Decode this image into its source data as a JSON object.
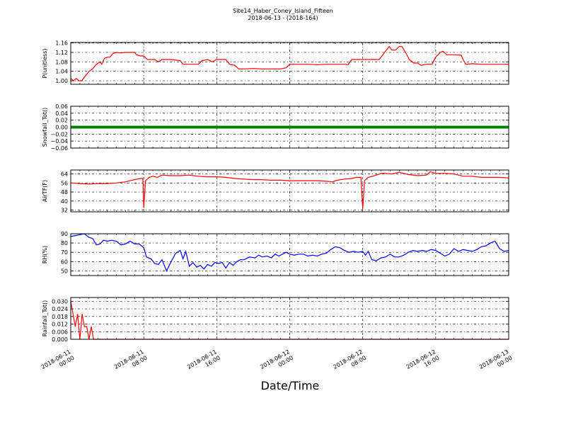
{
  "title_line1": "Site14_Haber_Coney_Island_Fifteen",
  "title_line2": "2018-06-13 - (2018-164)",
  "xlabel": "Date/Time",
  "chart_data": {
    "type": "line",
    "x_ticks": [
      {
        "line1": "2018-06-11",
        "line2": "00:00",
        "hours": 0
      },
      {
        "line1": "2018-06-11",
        "line2": "08:00",
        "hours": 8
      },
      {
        "line1": "2018-06-11",
        "line2": "16:00",
        "hours": 16
      },
      {
        "line1": "2018-06-12",
        "line2": "00:00",
        "hours": 24
      },
      {
        "line1": "2018-06-12",
        "line2": "08:00",
        "hours": 32
      },
      {
        "line1": "2018-06-12",
        "line2": "16:00",
        "hours": 40
      },
      {
        "line1": "2018-06-13",
        "line2": "00:00",
        "hours": 48
      }
    ],
    "panels": [
      {
        "ylabel": "P(unitless)",
        "ylim": [
          0.985,
          1.162
        ],
        "yticks": [
          "1.00",
          "1.04",
          "1.08",
          "1.12",
          "1.16"
        ],
        "ytick_values": [
          1.0,
          1.04,
          1.08,
          1.12,
          1.16
        ],
        "color": "#ff0000",
        "series_points": [
          [
            0,
            1.01
          ],
          [
            0.3,
            1.0
          ],
          [
            0.6,
            1.01
          ],
          [
            0.9,
            1.0
          ],
          [
            1.2,
            1.0
          ],
          [
            1.6,
            1.02
          ],
          [
            2.0,
            1.04
          ],
          [
            2.4,
            1.05
          ],
          [
            2.7,
            1.065
          ],
          [
            3.0,
            1.075
          ],
          [
            3.2,
            1.08
          ],
          [
            3.4,
            1.07
          ],
          [
            3.7,
            1.095
          ],
          [
            4.0,
            1.1
          ],
          [
            4.3,
            1.1
          ],
          [
            4.6,
            1.115
          ],
          [
            5.0,
            1.12
          ],
          [
            5.5,
            1.118
          ],
          [
            6,
            1.12
          ],
          [
            6.6,
            1.12
          ],
          [
            7.0,
            1.12
          ],
          [
            7.2,
            1.11
          ],
          [
            7.6,
            1.105
          ],
          [
            8.0,
            1.105
          ],
          [
            8.4,
            1.09
          ],
          [
            8.8,
            1.09
          ],
          [
            9.2,
            1.09
          ],
          [
            9.6,
            1.08
          ],
          [
            10.0,
            1.09
          ],
          [
            11,
            1.09
          ],
          [
            12,
            1.085
          ],
          [
            12.3,
            1.07
          ],
          [
            12.7,
            1.07
          ],
          [
            13.5,
            1.07
          ],
          [
            14,
            1.07
          ],
          [
            14.4,
            1.085
          ],
          [
            15,
            1.09
          ],
          [
            15.5,
            1.08
          ],
          [
            16,
            1.09
          ],
          [
            16.5,
            1.09
          ],
          [
            17,
            1.09
          ],
          [
            17.4,
            1.07
          ],
          [
            18,
            1.065
          ],
          [
            18.4,
            1.05
          ],
          [
            19,
            1.05
          ],
          [
            20,
            1.052
          ],
          [
            21,
            1.05
          ],
          [
            22,
            1.05
          ],
          [
            23,
            1.05
          ],
          [
            23.6,
            1.055
          ],
          [
            24,
            1.07
          ],
          [
            25,
            1.07
          ],
          [
            26,
            1.07
          ],
          [
            27,
            1.068
          ],
          [
            28,
            1.07
          ],
          [
            29,
            1.07
          ],
          [
            30,
            1.07
          ],
          [
            30.4,
            1.068
          ],
          [
            30.8,
            1.09
          ],
          [
            31.5,
            1.09
          ],
          [
            32,
            1.09
          ],
          [
            33,
            1.09
          ],
          [
            33.8,
            1.09
          ],
          [
            34,
            1.1
          ],
          [
            34.5,
            1.125
          ],
          [
            34.9,
            1.145
          ],
          [
            35.2,
            1.13
          ],
          [
            35.6,
            1.13
          ],
          [
            36,
            1.145
          ],
          [
            36.3,
            1.145
          ],
          [
            36.7,
            1.12
          ],
          [
            37.1,
            1.09
          ],
          [
            37.6,
            1.075
          ],
          [
            38,
            1.075
          ],
          [
            38.4,
            1.065
          ],
          [
            39,
            1.07
          ],
          [
            39.6,
            1.07
          ],
          [
            40,
            1.1
          ],
          [
            40.5,
            1.12
          ],
          [
            40.8,
            1.125
          ],
          [
            41.2,
            1.11
          ],
          [
            42,
            1.11
          ],
          [
            42.8,
            1.108
          ],
          [
            43,
            1.09
          ],
          [
            43.3,
            1.07
          ],
          [
            44,
            1.072
          ],
          [
            45,
            1.07
          ],
          [
            46,
            1.07
          ],
          [
            47,
            1.07
          ],
          [
            48,
            1.07
          ]
        ]
      },
      {
        "ylabel": "Snowfall_Tot()",
        "ylim": [
          -0.06,
          0.06
        ],
        "yticks": [
          "−0.06",
          "−0.04",
          "−0.02",
          "0.00",
          "0.02",
          "0.04",
          "0.06"
        ],
        "ytick_values": [
          -0.06,
          -0.04,
          -0.02,
          0.0,
          0.02,
          0.04,
          0.06
        ],
        "color": "#008000",
        "constant_value": 0.0
      },
      {
        "ylabel": "AirTF(F)",
        "ylim": [
          30.5,
          67.5
        ],
        "yticks": [
          "32",
          "40",
          "48",
          "56",
          "64"
        ],
        "ytick_values": [
          32,
          40,
          48,
          56,
          64
        ],
        "color": "#ff0000",
        "series_points": [
          [
            0,
            56
          ],
          [
            1,
            55.5
          ],
          [
            2,
            55
          ],
          [
            3,
            55.5
          ],
          [
            4,
            55.5
          ],
          [
            5,
            56
          ],
          [
            6,
            57
          ],
          [
            7,
            59
          ],
          [
            7.6,
            60
          ],
          [
            7.9,
            60
          ],
          [
            8.0,
            34
          ],
          [
            8.2,
            58
          ],
          [
            8.6,
            61
          ],
          [
            9,
            62
          ],
          [
            9.5,
            61
          ],
          [
            10,
            63
          ],
          [
            11,
            62.5
          ],
          [
            12,
            62.5
          ],
          [
            13,
            63
          ],
          [
            14,
            62
          ],
          [
            15,
            61.5
          ],
          [
            16,
            61.5
          ],
          [
            17,
            61
          ],
          [
            18,
            60
          ],
          [
            19,
            59.5
          ],
          [
            20,
            59
          ],
          [
            21,
            59
          ],
          [
            22,
            58.5
          ],
          [
            23,
            58.5
          ],
          [
            24,
            58
          ],
          [
            25,
            58
          ],
          [
            26,
            58
          ],
          [
            27,
            58
          ],
          [
            28,
            57.5
          ],
          [
            28.7,
            57
          ],
          [
            29.2,
            58.5
          ],
          [
            30,
            59.5
          ],
          [
            30.8,
            60
          ],
          [
            31.3,
            61
          ],
          [
            31.8,
            61
          ],
          [
            32.0,
            33
          ],
          [
            32.2,
            58
          ],
          [
            32.6,
            61
          ],
          [
            33.5,
            63
          ],
          [
            34,
            64.5
          ],
          [
            34.5,
            64.5
          ],
          [
            35.2,
            64
          ],
          [
            36,
            65.5
          ],
          [
            37,
            63.5
          ],
          [
            38,
            62.5
          ],
          [
            39,
            63
          ],
          [
            39.4,
            66
          ],
          [
            40,
            64.5
          ],
          [
            41,
            64.5
          ],
          [
            42,
            64
          ],
          [
            43,
            62
          ],
          [
            44,
            62
          ],
          [
            45,
            61
          ],
          [
            46,
            61
          ],
          [
            47,
            61
          ],
          [
            48,
            60.5
          ]
        ]
      },
      {
        "ylabel": "RH(%)",
        "ylim": [
          45,
          90
        ],
        "yticks": [
          "50",
          "60",
          "70",
          "80",
          "90"
        ],
        "ytick_values": [
          50,
          60,
          70,
          80,
          90
        ],
        "color": "#0000ff",
        "series_points": [
          [
            0,
            87
          ],
          [
            0.5,
            88
          ],
          [
            1,
            89
          ],
          [
            1.5,
            90
          ],
          [
            2,
            86
          ],
          [
            2.4,
            85
          ],
          [
            2.8,
            78
          ],
          [
            3.2,
            79
          ],
          [
            3.6,
            83
          ],
          [
            4,
            82
          ],
          [
            4.5,
            83
          ],
          [
            5,
            82
          ],
          [
            5.5,
            78
          ],
          [
            6,
            79
          ],
          [
            6.5,
            82
          ],
          [
            7,
            79
          ],
          [
            7.5,
            79
          ],
          [
            8,
            75
          ],
          [
            8.3,
            65
          ],
          [
            8.8,
            63
          ],
          [
            9.2,
            58
          ],
          [
            9.6,
            57
          ],
          [
            10,
            62
          ],
          [
            10.5,
            50
          ],
          [
            11,
            60
          ],
          [
            11.5,
            69
          ],
          [
            12,
            72
          ],
          [
            12.3,
            63
          ],
          [
            12.6,
            71
          ],
          [
            13,
            55
          ],
          [
            13.4,
            59
          ],
          [
            13.8,
            54
          ],
          [
            14.2,
            56
          ],
          [
            14.6,
            52
          ],
          [
            15,
            57
          ],
          [
            15.4,
            55
          ],
          [
            15.8,
            59
          ],
          [
            16.2,
            58
          ],
          [
            16.6,
            59
          ],
          [
            17,
            53
          ],
          [
            17.4,
            59
          ],
          [
            17.8,
            56
          ],
          [
            18.2,
            60
          ],
          [
            18.6,
            62
          ],
          [
            19,
            62
          ],
          [
            19.6,
            65
          ],
          [
            20.2,
            64
          ],
          [
            20.6,
            67
          ],
          [
            21,
            65
          ],
          [
            21.5,
            66
          ],
          [
            22,
            64
          ],
          [
            22.4,
            68
          ],
          [
            22.8,
            66
          ],
          [
            23.2,
            68
          ],
          [
            23.6,
            70
          ],
          [
            24,
            68
          ],
          [
            24.5,
            67
          ],
          [
            25,
            68
          ],
          [
            25.5,
            68
          ],
          [
            26,
            66
          ],
          [
            26.5,
            67
          ],
          [
            27,
            66
          ],
          [
            27.5,
            68
          ],
          [
            28,
            69
          ],
          [
            28.5,
            73
          ],
          [
            29,
            76
          ],
          [
            29.5,
            75
          ],
          [
            30,
            72
          ],
          [
            30.5,
            70
          ],
          [
            31,
            71
          ],
          [
            31.5,
            70
          ],
          [
            32,
            71
          ],
          [
            32.3,
            67
          ],
          [
            32.6,
            71
          ],
          [
            33,
            62
          ],
          [
            33.5,
            61
          ],
          [
            34,
            64
          ],
          [
            34.5,
            65
          ],
          [
            35,
            68
          ],
          [
            35.5,
            65
          ],
          [
            36,
            65
          ],
          [
            36.5,
            67
          ],
          [
            37,
            70
          ],
          [
            37.5,
            72
          ],
          [
            38,
            71
          ],
          [
            38.5,
            72
          ],
          [
            39,
            71
          ],
          [
            39.5,
            73
          ],
          [
            40,
            72
          ],
          [
            40.5,
            69
          ],
          [
            41,
            66
          ],
          [
            41.5,
            68
          ],
          [
            42,
            74
          ],
          [
            42.5,
            71
          ],
          [
            43,
            73
          ],
          [
            43.5,
            72
          ],
          [
            44,
            71
          ],
          [
            44.5,
            73
          ],
          [
            45,
            76
          ],
          [
            45.5,
            77
          ],
          [
            46,
            80
          ],
          [
            46.5,
            82
          ],
          [
            47,
            74
          ],
          [
            47.5,
            71
          ],
          [
            48,
            72
          ]
        ]
      },
      {
        "ylabel": "Rainfall_Tot()",
        "ylim": [
          0.0,
          0.033
        ],
        "yticks": [
          "0.000",
          "0.006",
          "0.012",
          "0.018",
          "0.024",
          "0.030"
        ],
        "ytick_values": [
          0.0,
          0.006,
          0.012,
          0.018,
          0.024,
          0.03
        ],
        "color": "#ff0000",
        "series_points": [
          [
            0,
            0.03
          ],
          [
            0.25,
            0.02
          ],
          [
            0.5,
            0.01
          ],
          [
            0.75,
            0.02
          ],
          [
            1.0,
            0.0
          ],
          [
            1.25,
            0.02
          ],
          [
            1.5,
            0.01
          ],
          [
            1.75,
            0.01
          ],
          [
            2.0,
            0.0
          ],
          [
            2.25,
            0.01
          ],
          [
            2.5,
            0.0
          ],
          [
            3,
            0.0
          ],
          [
            48,
            0.0
          ]
        ]
      }
    ]
  }
}
